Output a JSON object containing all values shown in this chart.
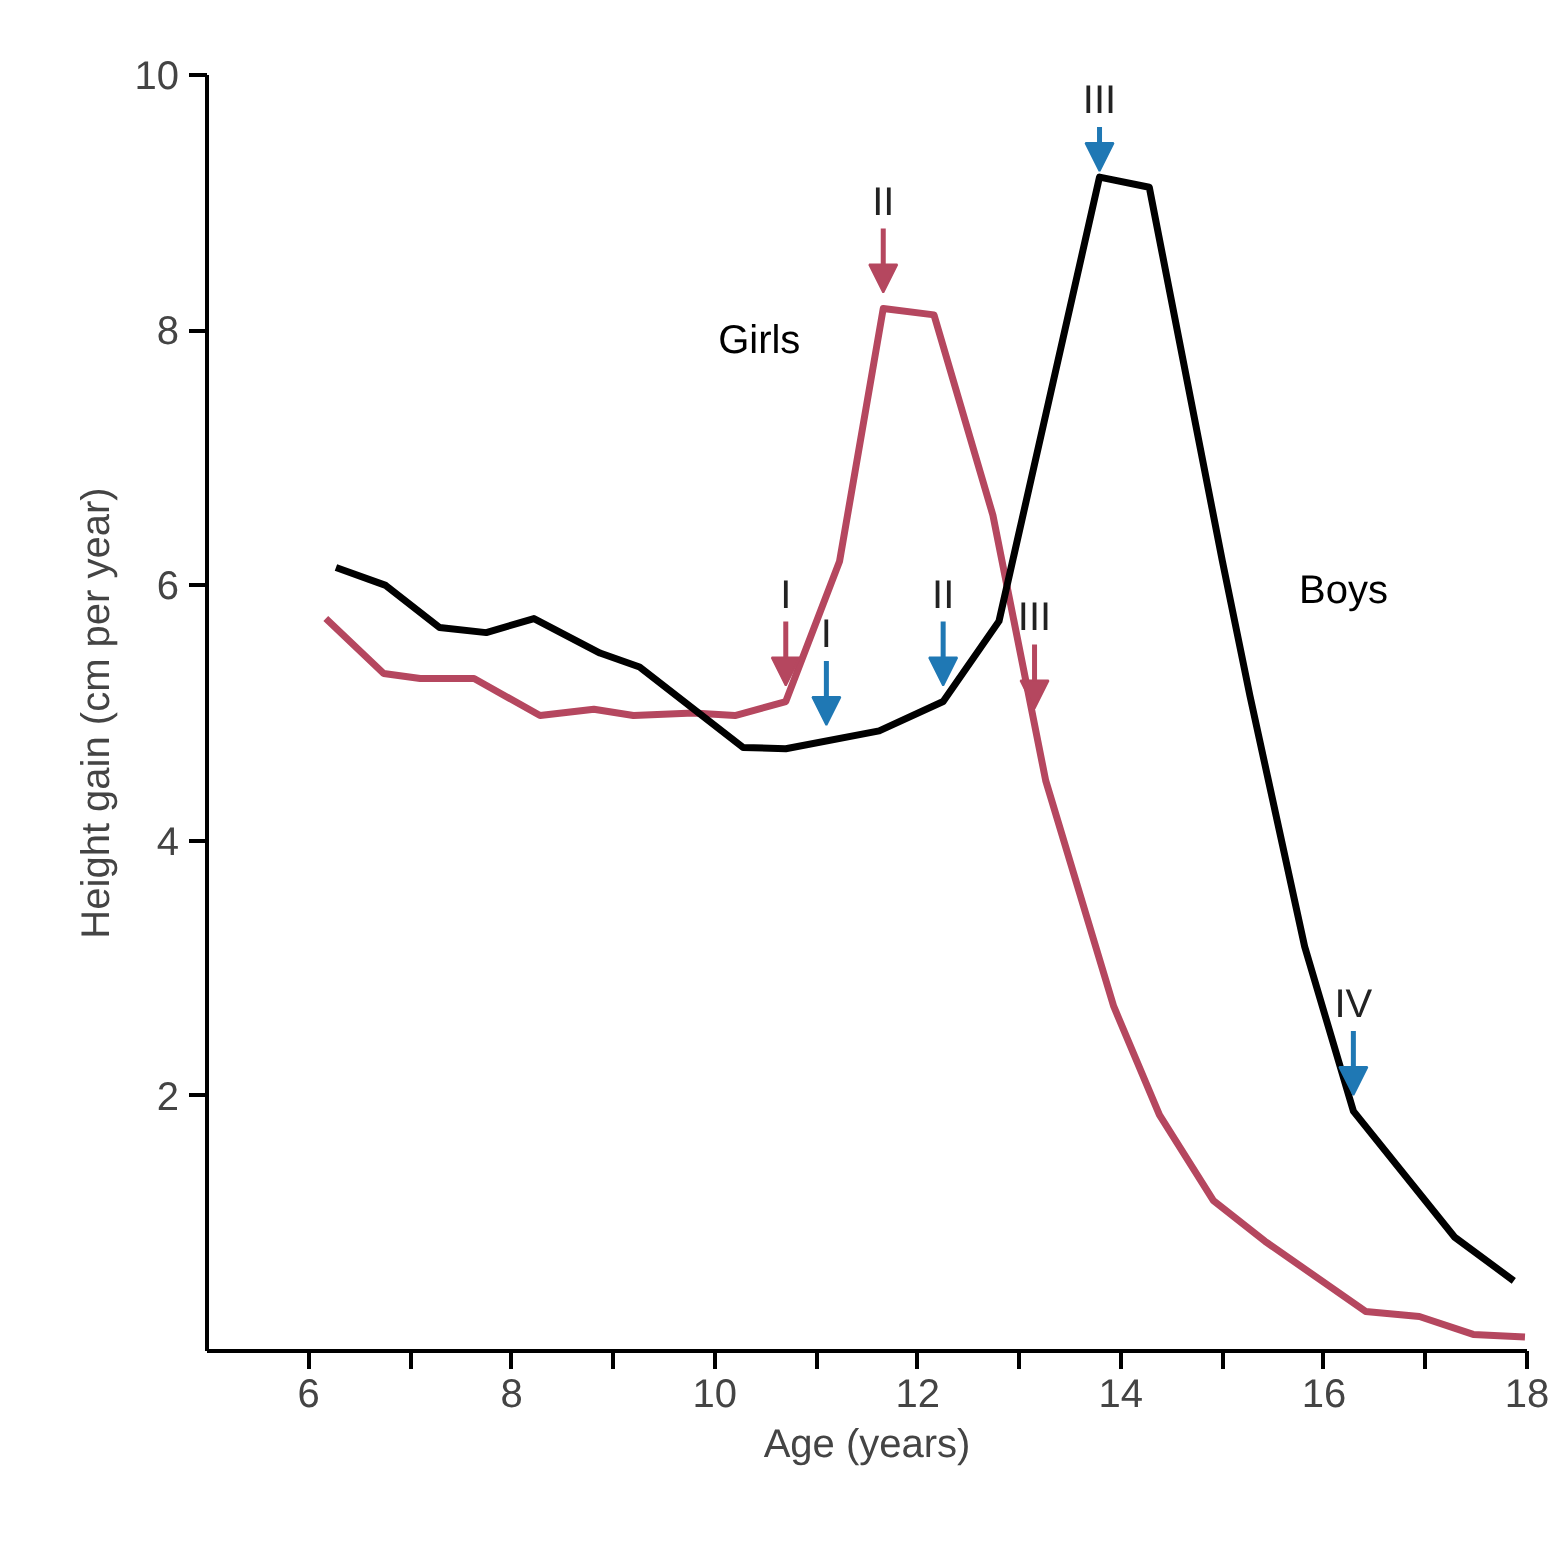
{
  "chart_data": {
    "type": "line",
    "xlabel": "Age (years)",
    "ylabel": "Height gain (cm per year)",
    "xlim": [
      5,
      18
    ],
    "ylim": [
      0,
      10
    ],
    "xticks": [
      6,
      {
        "value": 7,
        "label": null
      },
      8,
      {
        "value": 9,
        "label": null
      },
      10,
      {
        "value": 11,
        "label": null
      },
      12,
      {
        "value": 13,
        "label": null
      },
      14,
      {
        "value": 15,
        "label": null
      },
      16,
      {
        "value": 17,
        "label": null
      },
      18
    ],
    "yticks": [
      2,
      4,
      6,
      8,
      10
    ],
    "grid": false,
    "legend": false,
    "marker": "none",
    "line_style": "solid",
    "series": [
      {
        "name": "Girls",
        "color": "#b5475f",
        "x": [
          6.17,
          6.74,
          7.1,
          7.63,
          8.28,
          8.81,
          9.2,
          9.79,
          10.2,
          10.7,
          11.23,
          11.66,
          12.16,
          12.74,
          13.26,
          13.93,
          14.38,
          14.91,
          15.42,
          16.41,
          16.94,
          17.47,
          17.98
        ],
        "values": [
          5.74,
          5.31,
          5.27,
          5.27,
          4.98,
          5.03,
          4.98,
          5.0,
          4.98,
          5.09,
          6.19,
          8.17,
          8.12,
          6.55,
          4.47,
          2.7,
          1.85,
          1.18,
          0.86,
          0.31,
          0.27,
          0.13,
          0.11
        ]
      },
      {
        "name": "Boys",
        "color": "#000000",
        "x": [
          6.27,
          6.76,
          7.29,
          7.75,
          8.22,
          8.87,
          9.26,
          10.28,
          10.7,
          11.62,
          12.25,
          12.8,
          13.79,
          14.28,
          15.0,
          15.27,
          15.81,
          16.29,
          17.29,
          17.87
        ],
        "values": [
          6.14,
          6.0,
          5.67,
          5.63,
          5.74,
          5.47,
          5.36,
          4.73,
          4.72,
          4.86,
          5.09,
          5.72,
          9.2,
          9.12,
          6.19,
          5.14,
          3.17,
          1.88,
          0.89,
          0.55
        ]
      }
    ],
    "annotations": [
      {
        "text": "I",
        "x": 10.7,
        "y": 5.09
      },
      {
        "text": "II",
        "x": 11.66,
        "y": 8.17
      },
      {
        "text": "III",
        "x": 13.15,
        "y": 4.91
      },
      {
        "text": "I",
        "x": 11.1,
        "y": 4.78
      },
      {
        "text": "II",
        "x": 12.25,
        "y": 5.09
      },
      {
        "text": "III",
        "x": 13.79,
        "y": 9.2
      },
      {
        "text": "IV",
        "x": 16.29,
        "y": 1.88
      }
    ]
  }
}
